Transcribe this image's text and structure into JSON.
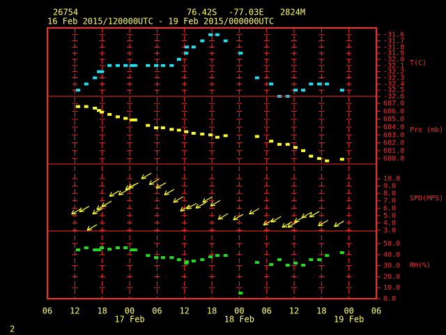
{
  "header": {
    "station": "26754",
    "latitude": "76.42S",
    "longitude": "-77.03E",
    "elevation": "2824M",
    "period": "16 Feb 2015/120000UTC - 19 Feb 2015/000000UTC",
    "page_number": "2"
  },
  "chart_data": [
    {
      "type": "scatter",
      "ylabel": "T(C)",
      "color": "#22e0f0",
      "x": [
        12.7,
        14.5,
        16.4,
        17.3,
        17.9,
        19.6,
        21.4,
        23.1,
        24.5,
        25.2,
        28,
        29.8,
        31.3,
        33.2,
        34.8,
        36.4,
        36.5,
        38,
        39.9,
        41.7,
        43.2,
        45,
        48.3,
        51.9,
        55,
        56.8,
        58.6,
        60.3,
        62,
        63.7,
        65.5,
        67.2,
        70.5
      ],
      "values": [
        -32.5,
        -32.4,
        -32.3,
        -32.2,
        -32.2,
        -32.1,
        -32.1,
        -32.1,
        -32.1,
        -32.1,
        -32.1,
        -32.1,
        -32.1,
        -32.1,
        -32.0,
        -31.9,
        -31.8,
        -31.8,
        -31.7,
        -31.6,
        -31.6,
        -31.7,
        -31.9,
        -32.3,
        -32.4,
        -32.6,
        -32.6,
        -32.5,
        -32.5,
        -32.4,
        -32.4,
        -32.4,
        -32.5
      ],
      "ylim": [
        -32.6,
        -31.49
      ],
      "yticks": [
        -31.6,
        -31.7,
        -31.8,
        -31.9,
        {
          "value": -32,
          "label": "-32.0"
        },
        -32.1,
        -32.2,
        -32.3,
        -32.4,
        -32.5,
        -32.6
      ]
    },
    {
      "type": "scatter",
      "ylabel": "Pre (mb)",
      "color": "#ffff33",
      "x": [
        12.7,
        14.5,
        16.4,
        17.3,
        17.9,
        19.6,
        21.4,
        23.1,
        24.5,
        25.2,
        28,
        29.8,
        31.3,
        33.2,
        34.8,
        36.4,
        38,
        39.9,
        41.7,
        43.2,
        45,
        51.9,
        55,
        56.8,
        58.6,
        60.3,
        62,
        63.7,
        65.5,
        67.2,
        70.5
      ],
      "values": [
        686.6,
        686.6,
        686.4,
        686.1,
        685.9,
        685.6,
        685.3,
        685.1,
        684.9,
        684.9,
        684.2,
        683.9,
        683.9,
        683.7,
        683.6,
        683.4,
        683.2,
        683.1,
        683.0,
        682.7,
        682.9,
        682.8,
        682.2,
        681.8,
        681.8,
        681.4,
        681.0,
        680.3,
        680.0,
        679.7,
        679.9
      ],
      "ylim": [
        679.3,
        687.9
      ],
      "yticks": [
        {
          "value": 687,
          "label": "687.0"
        },
        {
          "value": 686,
          "label": "686.0"
        },
        {
          "value": 685,
          "label": "685.0"
        },
        {
          "value": 684,
          "label": "684.0"
        },
        {
          "value": 683,
          "label": "683.0"
        },
        {
          "value": 682,
          "label": "682.0"
        },
        {
          "value": 681,
          "label": "681.0"
        },
        {
          "value": 680,
          "label": "680.0"
        }
      ]
    },
    {
      "type": "vector",
      "ylabel": "SPD(MPS)",
      "color": "#ffff33",
      "x": [
        11.3,
        13.0,
        14.7,
        15.9,
        16.8,
        17.9,
        19.6,
        21.6,
        23.1,
        23.8,
        26.6,
        28.3,
        29.8,
        31.6,
        33.6,
        35.1,
        36.5,
        38.5,
        40.0,
        41.7,
        43.4,
        46.7,
        50.2,
        53.3,
        55.0,
        57.4,
        58.6,
        60.1,
        61.7,
        63.4,
        65.3,
        68.8
      ],
      "values": [
        5.2,
        5.5,
        3.0,
        5.2,
        5.8,
        6.2,
        7.6,
        7.8,
        8.5,
        8.7,
        10.0,
        9.2,
        8.7,
        7.8,
        6.8,
        5.6,
        5.9,
        6.0,
        6.8,
        6.3,
        4.5,
        4.4,
        5.2,
        3.7,
        4.1,
        3.4,
        3.4,
        4.1,
        4.7,
        4.8,
        3.6,
        3.5
      ],
      "ylim": [
        2.9,
        12.0
      ],
      "yticks": [
        {
          "value": 10,
          "label": "10.0"
        },
        {
          "value": 9,
          "label": "9.0"
        },
        {
          "value": 8,
          "label": "8.0"
        },
        {
          "value": 7,
          "label": "7.0"
        },
        {
          "value": 6,
          "label": "6.0"
        },
        {
          "value": 5,
          "label": "5.0"
        },
        {
          "value": 4,
          "label": "4.0"
        },
        {
          "value": 3,
          "label": "3.0"
        }
      ]
    },
    {
      "type": "scatter",
      "ylabel": "RH(%)",
      "color": "#22dd22",
      "x": [
        12.7,
        14.5,
        16.4,
        17.3,
        17.9,
        19.6,
        21.4,
        23.1,
        24.5,
        25.2,
        28,
        29.8,
        31.3,
        33.2,
        34.8,
        36.4,
        36.5,
        38,
        39.9,
        41.7,
        43.2,
        45,
        48.3,
        51.9,
        55,
        56.8,
        58.6,
        60.3,
        62,
        63.7,
        65.5,
        67.2,
        70.5
      ],
      "values": [
        44.3,
        46.2,
        44.3,
        44.3,
        46.2,
        44.9,
        46.2,
        46.2,
        44.3,
        44.3,
        39.2,
        37.3,
        37.3,
        37.3,
        35.4,
        32.3,
        33.5,
        34.2,
        35.4,
        38.0,
        39.2,
        39.2,
        5.1,
        32.9,
        31.0,
        35.4,
        30.4,
        32.3,
        30.4,
        35.4,
        35.4,
        39.2,
        41.8
      ],
      "ylim": [
        0,
        61.4
      ],
      "yticks": [
        {
          "value": 50,
          "label": "50.0"
        },
        {
          "value": 40,
          "label": "40.0"
        },
        {
          "value": 30,
          "label": "30.0"
        },
        {
          "value": 20,
          "label": "20.0"
        },
        {
          "value": 10,
          "label": "10.0"
        },
        {
          "value": 0,
          "label": "0.0"
        }
      ],
      "xlim": [
        6,
        78
      ],
      "xticks": [
        {
          "value": 6,
          "label": "06"
        },
        12,
        18,
        {
          "value": 24,
          "label": "00"
        },
        {
          "value": 30,
          "label": "06"
        },
        {
          "value": 36,
          "label": "12"
        },
        {
          "value": 42,
          "label": "18"
        },
        {
          "value": 48,
          "label": "00"
        },
        {
          "value": 54,
          "label": "06"
        },
        {
          "value": 60,
          "label": "12"
        },
        {
          "value": 66,
          "label": "18"
        },
        {
          "value": 72,
          "label": "00"
        },
        {
          "value": 78,
          "label": "06"
        }
      ],
      "day_labels": [
        {
          "value": 24,
          "label": "17 Feb"
        },
        {
          "value": 48,
          "label": "18 Feb"
        },
        {
          "value": 72,
          "label": "19 Feb"
        }
      ]
    }
  ]
}
